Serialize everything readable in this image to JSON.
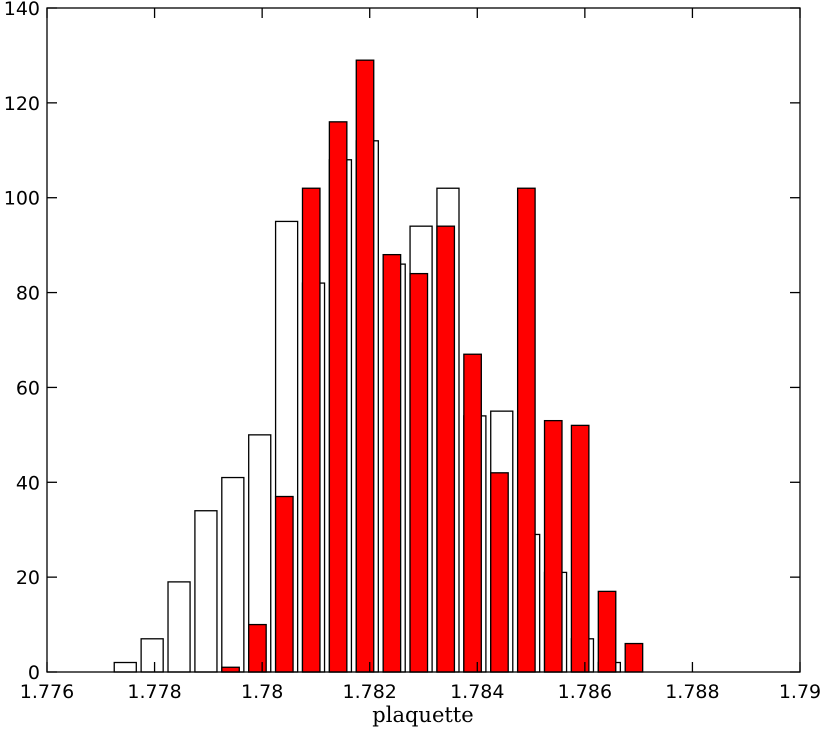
{
  "chart_data": {
    "type": "histogram",
    "x_label": "plaquette",
    "bins": [
      1.77725,
      1.77775,
      1.77825,
      1.77875,
      1.77925,
      1.77975,
      1.78025,
      1.78075,
      1.78125,
      1.78175,
      1.78225,
      1.78275,
      1.78325,
      1.78375,
      1.78425,
      1.78475,
      1.78525,
      1.78575,
      1.78625,
      1.78675,
      1.78725
    ],
    "series": [
      {
        "color": "#ffffff",
        "values": [
          2,
          7,
          19,
          34,
          41,
          50,
          95,
          82,
          108,
          112,
          86,
          94,
          102,
          54,
          55,
          29,
          21,
          7,
          2,
          0
        ]
      },
      {
        "color": "#ff0000",
        "values": [
          0,
          0,
          0,
          0,
          1,
          10,
          37,
          102,
          116,
          129,
          88,
          84,
          94,
          67,
          42,
          102,
          53,
          52,
          17,
          6
        ]
      }
    ],
    "xlim": [
      1.776,
      1.79
    ],
    "xticks": [
      1.776,
      1.778,
      1.78,
      1.782,
      1.784,
      1.786,
      1.788,
      1.79
    ],
    "ylim": [
      0,
      140
    ],
    "yticks": [
      0,
      20,
      40,
      60,
      80,
      100,
      120,
      140
    ]
  }
}
